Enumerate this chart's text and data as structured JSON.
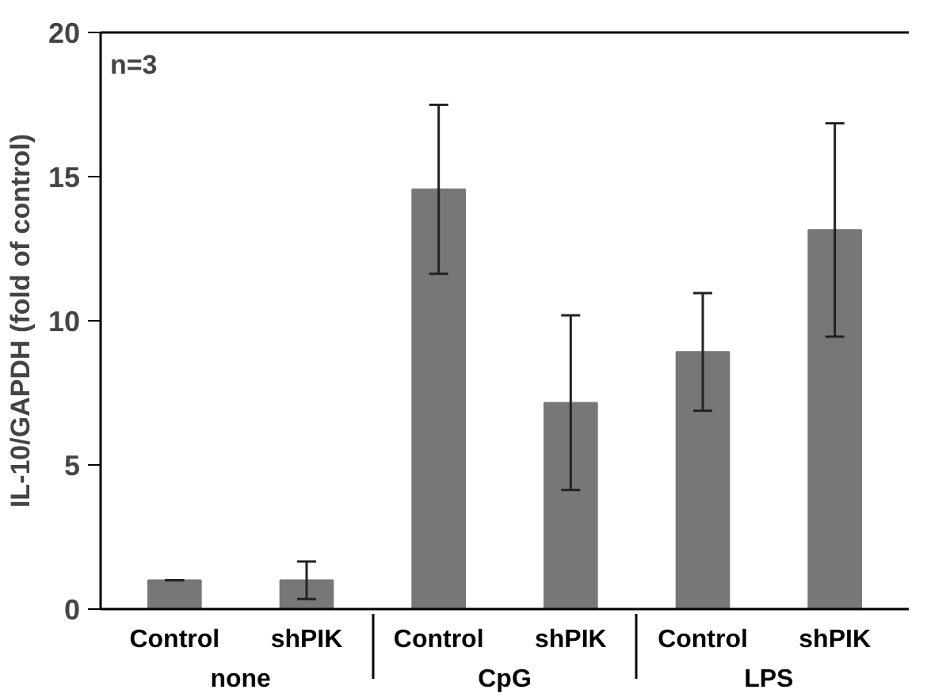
{
  "chart_data": {
    "type": "bar",
    "ylabel": "IL-10/GAPDH (fold of control)",
    "categories": [
      "Control",
      "shPIK",
      "Control",
      "shPIK",
      "Control",
      "shPIK"
    ],
    "values": [
      1.0,
      1.0,
      14.56,
      7.16,
      8.92,
      13.15
    ],
    "errors": [
      0,
      0.65,
      2.93,
      3.03,
      2.04,
      3.7
    ],
    "color": "#777777",
    "ylim": [
      0,
      20
    ],
    "yticks": [
      0,
      5,
      10,
      15,
      20
    ],
    "grid": false,
    "annotations": [
      "n=3",
      "none",
      "CpG",
      "LPS"
    ]
  }
}
